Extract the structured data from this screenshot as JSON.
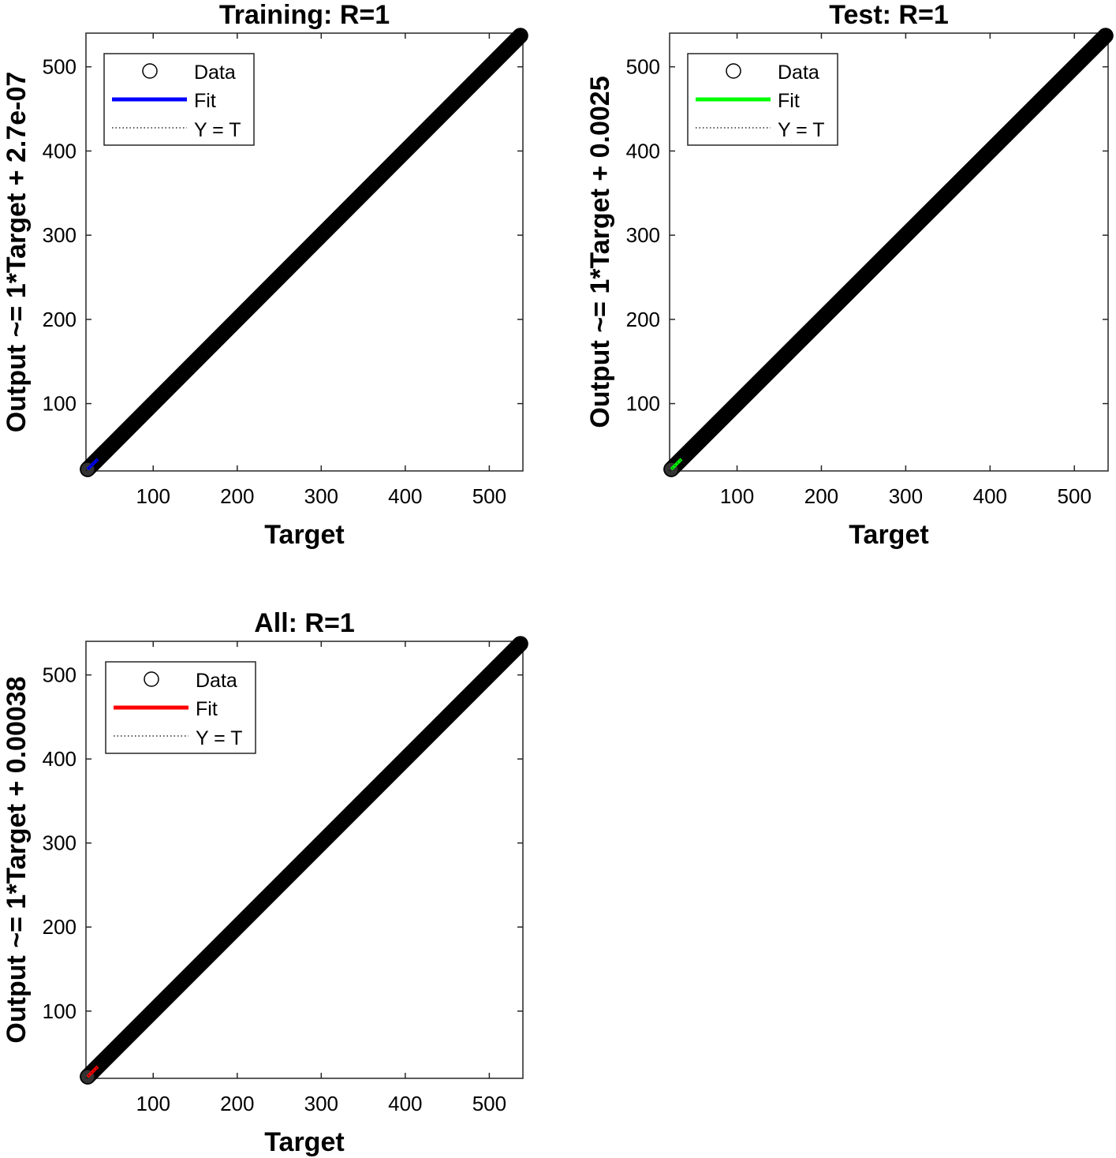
{
  "chart_data": [
    {
      "type": "scatter",
      "title": "Training: R=1",
      "xlabel": "Target",
      "ylabel": "Output ~= 1*Target + 2.7e-07",
      "xlim": [
        20,
        540
      ],
      "ylim": [
        20,
        540
      ],
      "xticks": [
        100,
        200,
        300,
        400,
        500
      ],
      "yticks": [
        100,
        200,
        300,
        400,
        500
      ],
      "fit_color": "#0000ff",
      "marker_color": "#000000",
      "data_range": [
        22,
        537
      ],
      "legend": [
        "Data",
        "Fit",
        "Y = T"
      ],
      "fit": {
        "slope": 1,
        "intercept": 2.7e-07
      }
    },
    {
      "type": "scatter",
      "title": "Test: R=1",
      "xlabel": "Target",
      "ylabel": "Output ~= 1*Target + 0.0025",
      "xlim": [
        20,
        540
      ],
      "ylim": [
        20,
        540
      ],
      "xticks": [
        100,
        200,
        300,
        400,
        500
      ],
      "yticks": [
        100,
        200,
        300,
        400,
        500
      ],
      "fit_color": "#00ff00",
      "marker_color": "#000000",
      "data_range": [
        22,
        537
      ],
      "legend": [
        "Data",
        "Fit",
        "Y = T"
      ],
      "fit": {
        "slope": 1,
        "intercept": 0.0025
      }
    },
    {
      "type": "scatter",
      "title": "All: R=1",
      "xlabel": "Target",
      "ylabel": "Output ~= 1*Target + 0.00038",
      "xlim": [
        20,
        540
      ],
      "ylim": [
        20,
        540
      ],
      "xticks": [
        100,
        200,
        300,
        400,
        500
      ],
      "yticks": [
        100,
        200,
        300,
        400,
        500
      ],
      "fit_color": "#ff0000",
      "marker_color": "#000000",
      "data_range": [
        22,
        537
      ],
      "legend": [
        "Data",
        "Fit",
        "Y = T"
      ],
      "fit": {
        "slope": 1,
        "intercept": 0.00038
      }
    }
  ]
}
